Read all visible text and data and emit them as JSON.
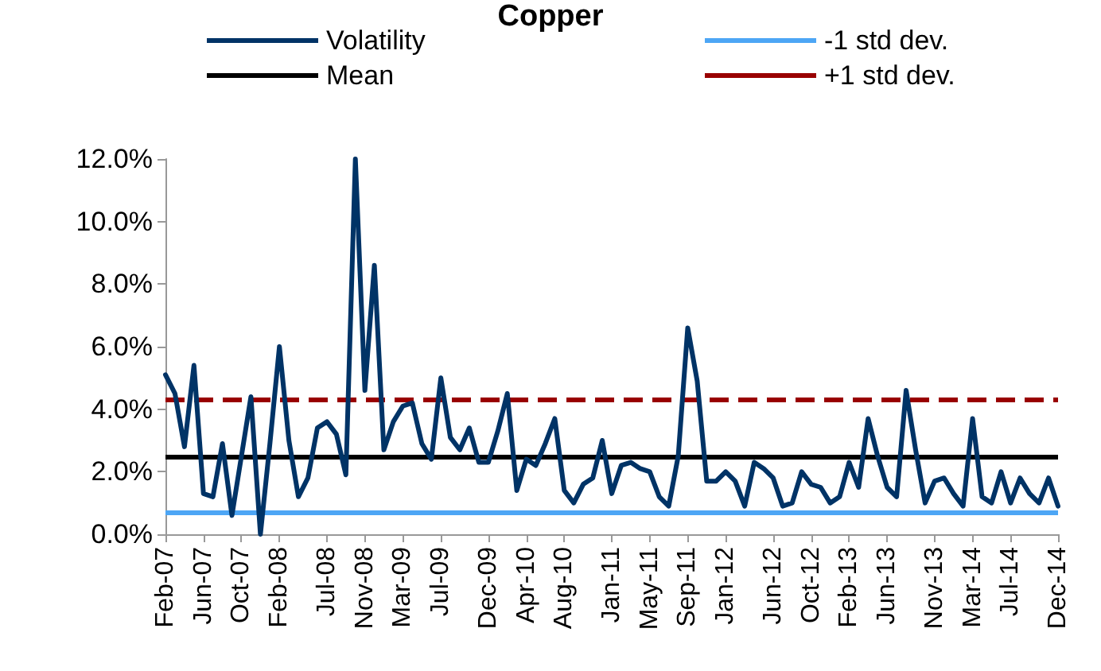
{
  "chart_data": {
    "type": "line",
    "title": "Copper",
    "categories": [
      "Feb-07",
      null,
      null,
      null,
      "Jun-07",
      null,
      null,
      null,
      "Oct-07",
      null,
      null,
      null,
      "Feb-08",
      null,
      null,
      null,
      null,
      "Jul-08",
      null,
      null,
      null,
      "Nov-08",
      null,
      null,
      null,
      "Mar-09",
      null,
      null,
      null,
      "Jul-09",
      null,
      null,
      null,
      null,
      "Dec-09",
      null,
      null,
      null,
      "Apr-10",
      null,
      null,
      null,
      "Aug-10",
      null,
      null,
      null,
      null,
      "Jan-11",
      null,
      null,
      null,
      "May-11",
      null,
      null,
      null,
      "Sep-11",
      null,
      null,
      null,
      "Jan-12",
      null,
      null,
      null,
      null,
      "Jun-12",
      null,
      null,
      null,
      "Oct-12",
      null,
      null,
      null,
      "Feb-13",
      null,
      null,
      null,
      "Jun-13",
      null,
      null,
      null,
      null,
      "Nov-13",
      null,
      null,
      null,
      "Mar-14",
      null,
      null,
      null,
      "Jul-14",
      null,
      null,
      null,
      null,
      "Dec-14"
    ],
    "series": [
      {
        "name": "Volatility",
        "color": "#003366",
        "values": [
          5.1,
          4.5,
          2.8,
          5.4,
          1.3,
          1.2,
          2.9,
          0.6,
          2.5,
          4.4,
          0.0,
          2.9,
          6.0,
          3.0,
          1.2,
          1.8,
          3.4,
          3.6,
          3.2,
          1.9,
          12.0,
          4.6,
          8.6,
          2.7,
          3.6,
          4.1,
          4.2,
          2.9,
          2.4,
          5.0,
          3.1,
          2.7,
          3.4,
          2.3,
          2.3,
          3.3,
          4.5,
          1.4,
          2.4,
          2.2,
          2.9,
          3.7,
          1.4,
          1.0,
          1.6,
          1.8,
          3.0,
          1.3,
          2.2,
          2.3,
          2.1,
          2.0,
          1.2,
          0.9,
          2.5,
          6.6,
          4.9,
          1.7,
          1.7,
          2.0,
          1.7,
          0.9,
          2.3,
          2.1,
          1.8,
          0.9,
          1.0,
          2.0,
          1.6,
          1.5,
          1.0,
          1.2,
          2.3,
          1.5,
          3.7,
          2.5,
          1.5,
          1.2,
          4.6,
          2.7,
          1.0,
          1.7,
          1.8,
          1.3,
          0.9,
          3.7,
          1.2,
          1.0,
          2.0,
          1.0,
          1.8,
          1.3,
          1.0,
          1.8,
          0.9
        ]
      }
    ],
    "ref_lines": [
      {
        "axis": "y",
        "value": 0.7,
        "label": "-1 std dev.",
        "color": "#4da6f5",
        "line_style": "solid"
      },
      {
        "axis": "y",
        "value": 2.5,
        "label": "Mean",
        "color": "#000000",
        "line_style": "solid"
      },
      {
        "axis": "y",
        "value": 4.3,
        "label": "+1 std dev.",
        "color": "#990000",
        "line_style": "dashed"
      }
    ],
    "ylim": [
      0,
      12
    ],
    "yticks": [
      {
        "value": 0,
        "label": "0.0%"
      },
      {
        "value": 2,
        "label": "2.0%"
      },
      {
        "value": 4,
        "label": "4.0%"
      },
      {
        "value": 6,
        "label": "6.0%"
      },
      {
        "value": 8,
        "label": "8.0%"
      },
      {
        "value": 10,
        "label": "10.0%"
      },
      {
        "value": 12,
        "label": "12.0%"
      }
    ],
    "legend": "top",
    "grid": false,
    "marker": "none",
    "line_style": "solid"
  }
}
